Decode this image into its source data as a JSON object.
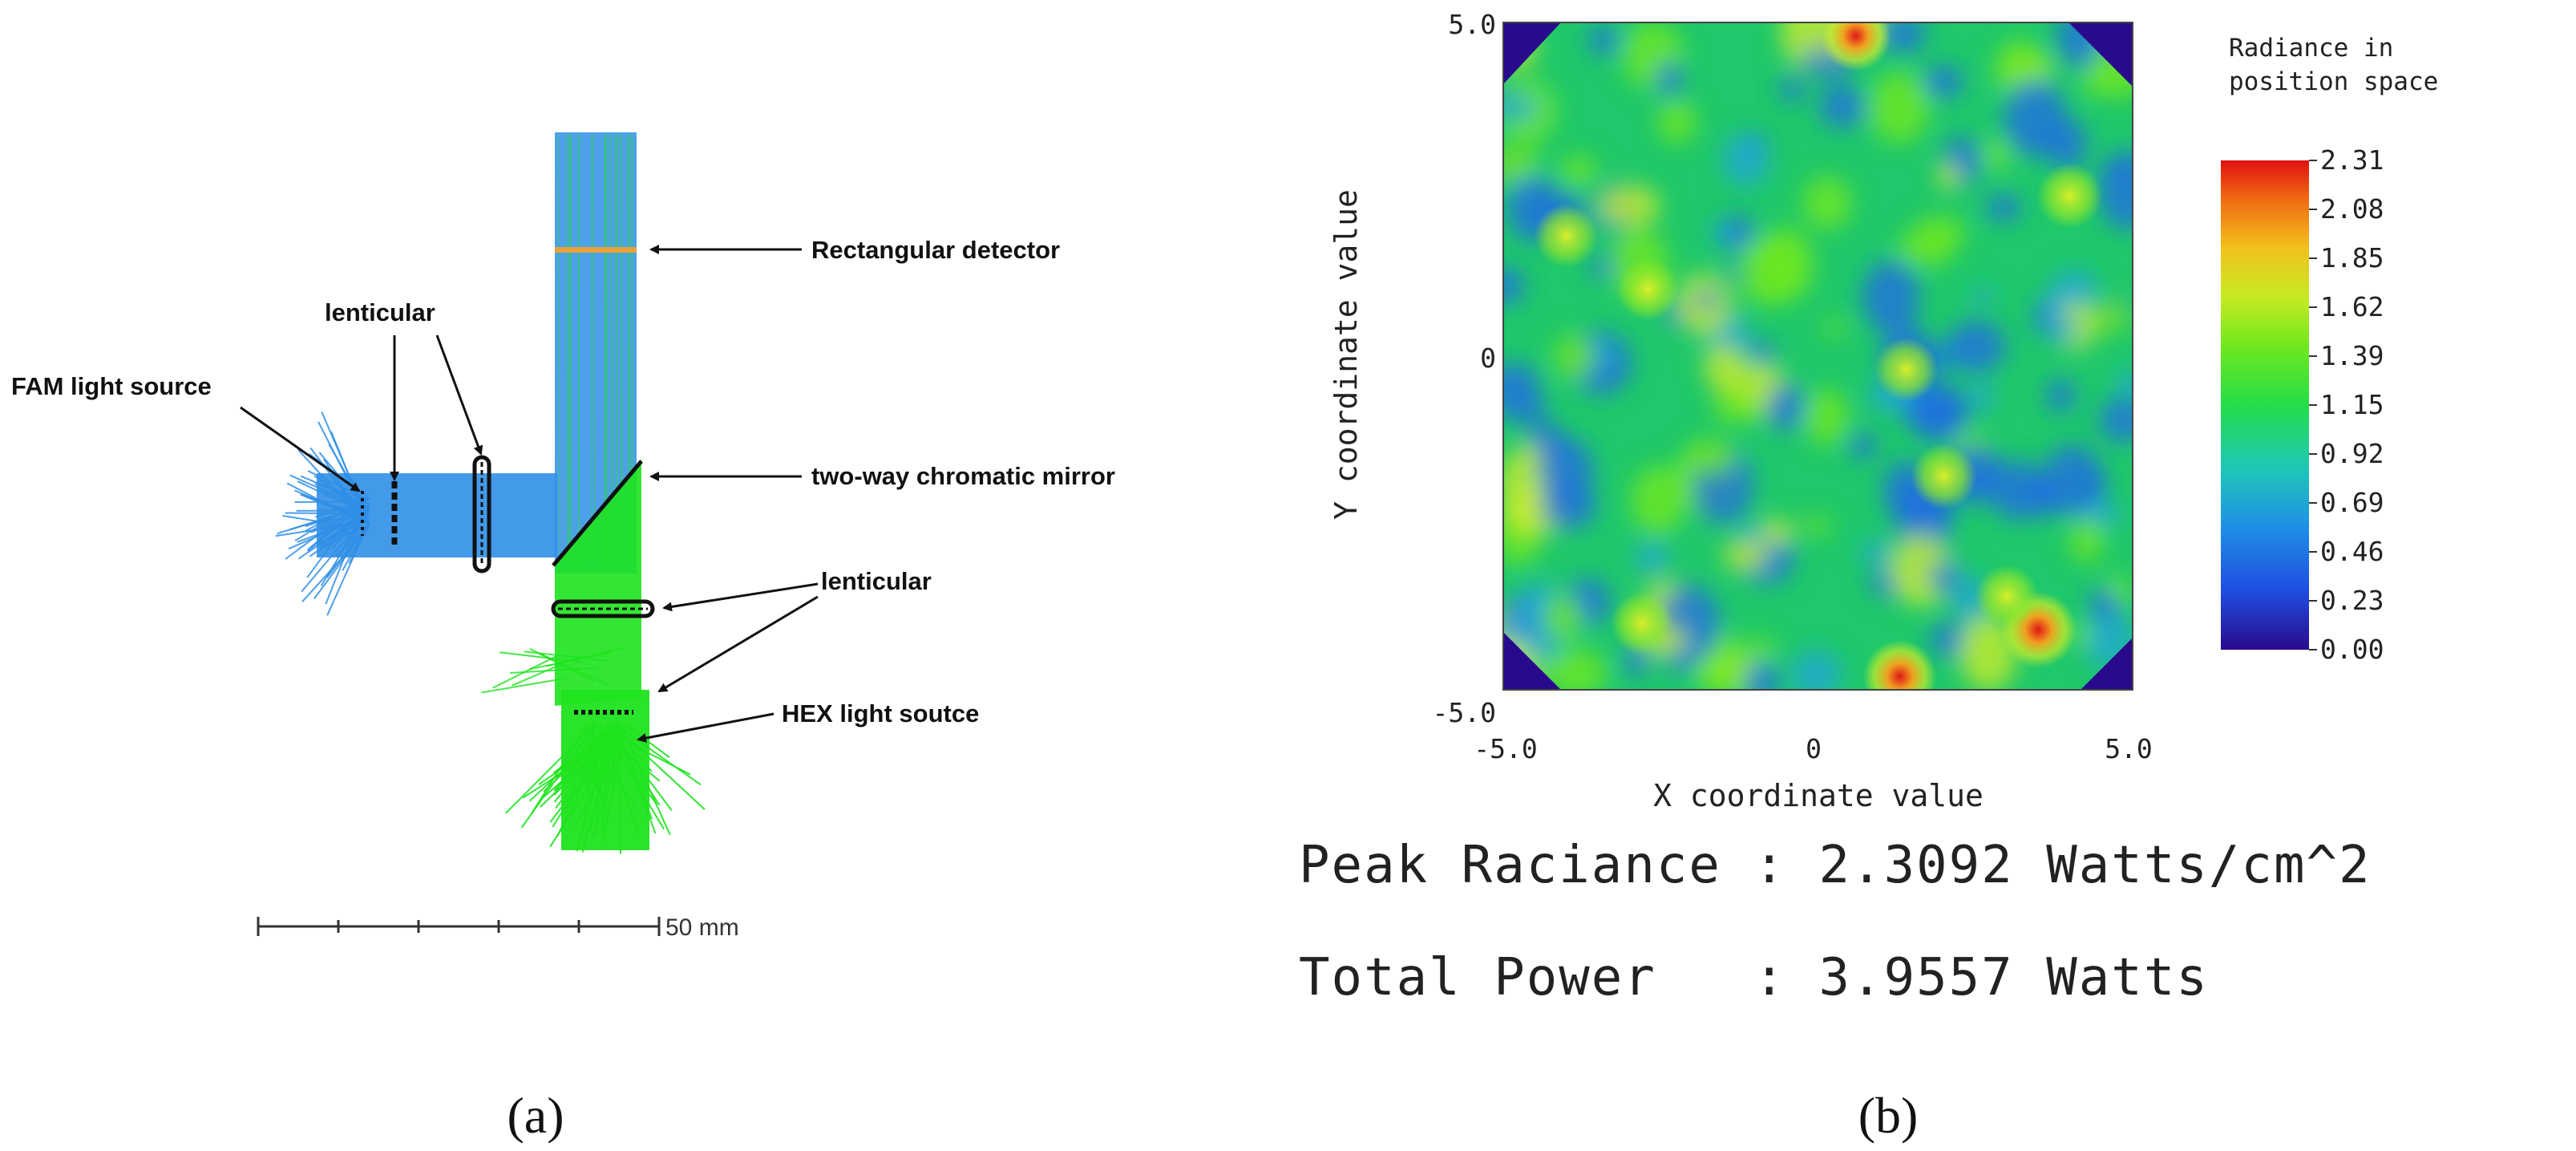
{
  "panel_a": {
    "label": "(a)",
    "callouts": {
      "detector": "Rectangular detector",
      "lenticular_top": "lenticular",
      "fam_source": "FAM light source",
      "mirror": "two-way chromatic mirror",
      "lenticular_bottom": "lenticular",
      "hex_source": "HEX light soutce"
    },
    "scale_bar": "50 mm",
    "colors": {
      "fam_rays": "#2f8fe6",
      "hex_rays": "#1ee31e",
      "detector": "#e8a23a",
      "optics": "#111111"
    }
  },
  "panel_b": {
    "label": "(b)",
    "peak_line": "Peak Raciance : 2.3092 Watts/cm^2",
    "power_line": "Total Power   : 3.9557 Watts",
    "chart_data": {
      "type": "heatmap",
      "title": "Radiance in position space",
      "xlabel": "X coordinate value",
      "ylabel": "Y coordinate value",
      "xlim": [
        -5.0,
        5.0
      ],
      "ylim": [
        -5.0,
        5.0
      ],
      "xticks": [
        "-5.0",
        "0",
        "5.0"
      ],
      "yticks": [
        "5.0",
        "0",
        "-5.0"
      ],
      "colorbar": {
        "title_lines": [
          "Radiance in",
          "position space"
        ],
        "range": [
          0.0,
          2.31
        ],
        "ticks": [
          "2.31",
          "2.08",
          "1.85",
          "1.62",
          "1.39",
          "1.15",
          "0.92",
          "0.69",
          "0.46",
          "0.23",
          "0.00"
        ]
      },
      "peak_radiance_w_per_cm2": 2.3092,
      "total_power_w": 3.9557,
      "hotspots": [
        {
          "x": 0.6,
          "y": 4.8,
          "value": 1.9
        },
        {
          "x": 1.3,
          "y": -4.8,
          "value": 2.1
        },
        {
          "x": 3.5,
          "y": -4.1,
          "value": 2.31
        },
        {
          "x": -4.0,
          "y": 1.8,
          "value": 1.5
        },
        {
          "x": -2.8,
          "y": -4.0,
          "value": 1.4
        },
        {
          "x": 2.0,
          "y": -1.8,
          "value": 1.6
        },
        {
          "x": 3.0,
          "y": -3.6,
          "value": 1.5
        },
        {
          "x": 4.0,
          "y": 2.4,
          "value": 1.6
        },
        {
          "x": -2.7,
          "y": 1.0,
          "value": 1.4
        },
        {
          "x": 1.4,
          "y": -0.2,
          "value": 1.5
        }
      ]
    }
  }
}
